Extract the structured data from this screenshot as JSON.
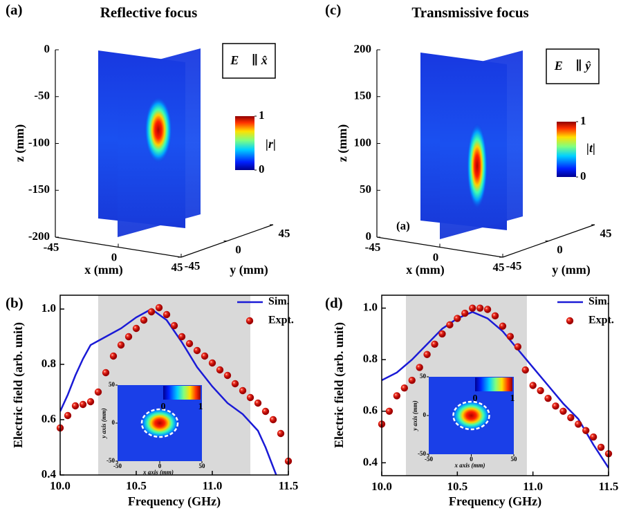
{
  "chart_data": [
    {
      "type": "field3d",
      "panel_label": "(a)",
      "title": "Reflective focus",
      "polarization": "E⃗ ∥ x̂",
      "zlabel": "z (mm)",
      "xlabel": "x (mm)",
      "ylabel": "y (mm)",
      "zlim": [
        -200,
        0
      ],
      "zticks": [
        0,
        -50,
        -100,
        -150,
        -200
      ],
      "xlim": [
        -45,
        45
      ],
      "xticks": [
        -45,
        0,
        45
      ],
      "ylim": [
        -45,
        45
      ],
      "yticks": [
        -45,
        0,
        45
      ],
      "colorbar": {
        "label": "|r|",
        "lim": [
          0,
          1
        ],
        "ticks": [
          1,
          0
        ]
      }
    },
    {
      "type": "line",
      "panel_label": "(b)",
      "xlabel": "Frequency (GHz)",
      "ylabel": "Electric field (arb. unit)",
      "xlim": [
        10,
        11.5
      ],
      "xticks": [
        {
          "value": 10,
          "label": "10.0"
        },
        10.5,
        {
          "value": 11,
          "label": "11.0"
        },
        11.5
      ],
      "ylim": [
        0.4,
        1.05
      ],
      "yticks": [
        0.4,
        0.6,
        0.8,
        {
          "value": 1,
          "label": "1.0"
        }
      ],
      "shade": [
        10.25,
        11.25
      ],
      "legend": "upper right",
      "series": [
        {
          "name": "Sim.",
          "color": "#1a1ad6",
          "style": "line",
          "x": [
            10.0,
            10.05,
            10.1,
            10.15,
            10.2,
            10.25,
            10.3,
            10.4,
            10.5,
            10.6,
            10.7,
            10.8,
            10.9,
            11.0,
            11.1,
            11.2,
            11.3,
            11.35,
            11.42
          ],
          "values": [
            0.63,
            0.69,
            0.76,
            0.82,
            0.87,
            0.885,
            0.9,
            0.93,
            0.97,
            1.0,
            0.96,
            0.88,
            0.79,
            0.72,
            0.66,
            0.62,
            0.56,
            0.5,
            0.4
          ]
        },
        {
          "name": "Expt.",
          "color": "#e8261c",
          "style": "marker",
          "x": [
            10.0,
            10.05,
            10.1,
            10.15,
            10.2,
            10.25,
            10.3,
            10.35,
            10.4,
            10.45,
            10.5,
            10.55,
            10.6,
            10.65,
            10.7,
            10.75,
            10.8,
            10.85,
            10.9,
            10.95,
            11.0,
            11.05,
            11.1,
            11.15,
            11.2,
            11.25,
            11.3,
            11.35,
            11.4,
            11.45,
            11.5
          ],
          "values": [
            0.57,
            0.615,
            0.65,
            0.655,
            0.665,
            0.7,
            0.77,
            0.83,
            0.87,
            0.9,
            0.93,
            0.96,
            0.99,
            1.005,
            0.98,
            0.94,
            0.9,
            0.875,
            0.85,
            0.83,
            0.805,
            0.78,
            0.76,
            0.73,
            0.705,
            0.68,
            0.66,
            0.63,
            0.6,
            0.55,
            0.45
          ]
        }
      ],
      "inset": {
        "xlabel": "x axis (mm)",
        "ylabel": "y axis (mm)",
        "xlim": [
          -50,
          50
        ],
        "ylim": [
          -50,
          50
        ],
        "xticks": [
          -50,
          0,
          50
        ],
        "yticks": [
          -50,
          0,
          50
        ],
        "colorbar_ticks": [
          0,
          1
        ]
      }
    },
    {
      "type": "field3d",
      "panel_label": "(c)",
      "title": "Transmissive focus",
      "polarization": "E⃗ ∥ ŷ",
      "zlabel": "z (mm)",
      "xlabel": "x (mm)",
      "ylabel": "y (mm)",
      "annotation": "(a)",
      "zlim": [
        0,
        200
      ],
      "zticks": [
        200,
        150,
        100,
        50,
        0
      ],
      "xlim": [
        -45,
        45
      ],
      "xticks": [
        -45,
        0,
        45
      ],
      "ylim": [
        -45,
        45
      ],
      "yticks": [
        -45,
        0,
        45
      ],
      "colorbar": {
        "label": "|t|",
        "lim": [
          0,
          1
        ],
        "ticks": [
          1,
          0
        ]
      }
    },
    {
      "type": "line",
      "panel_label": "(d)",
      "xlabel": "Frequency (GHz)",
      "ylabel": "Electric field (arb. unit)",
      "xlim": [
        10,
        11.5
      ],
      "xticks": [
        {
          "value": 10,
          "label": "10.0"
        },
        10.5,
        {
          "value": 11,
          "label": "11.0"
        },
        11.5
      ],
      "ylim": [
        0.35,
        1.05
      ],
      "yticks": [
        0.4,
        0.6,
        0.8,
        {
          "value": 1,
          "label": "1.0"
        }
      ],
      "shade": [
        10.16,
        10.96
      ],
      "legend": "upper right",
      "series": [
        {
          "name": "Sim.",
          "color": "#1a1ad6",
          "style": "line",
          "x": [
            10.0,
            10.1,
            10.2,
            10.3,
            10.4,
            10.5,
            10.6,
            10.7,
            10.8,
            10.9,
            11.0,
            11.1,
            11.2,
            11.3,
            11.4,
            11.5
          ],
          "values": [
            0.72,
            0.75,
            0.8,
            0.86,
            0.92,
            0.96,
            0.985,
            0.96,
            0.91,
            0.84,
            0.77,
            0.7,
            0.63,
            0.57,
            0.47,
            0.38
          ]
        },
        {
          "name": "Expt.",
          "color": "#e8261c",
          "style": "marker",
          "x": [
            10.0,
            10.05,
            10.1,
            10.15,
            10.2,
            10.25,
            10.3,
            10.35,
            10.4,
            10.45,
            10.5,
            10.55,
            10.6,
            10.65,
            10.7,
            10.75,
            10.8,
            10.85,
            10.9,
            10.95,
            11.0,
            11.05,
            11.1,
            11.15,
            11.2,
            11.25,
            11.3,
            11.35,
            11.4,
            11.45,
            11.5
          ],
          "values": [
            0.55,
            0.6,
            0.66,
            0.69,
            0.72,
            0.77,
            0.82,
            0.86,
            0.9,
            0.935,
            0.96,
            0.98,
            1.0,
            1.0,
            0.995,
            0.97,
            0.93,
            0.89,
            0.85,
            0.76,
            0.7,
            0.68,
            0.65,
            0.62,
            0.6,
            0.575,
            0.55,
            0.525,
            0.5,
            0.46,
            0.435
          ]
        }
      ],
      "inset": {
        "xlabel": "x axis (mm)",
        "ylabel": "y axis (mm)",
        "xlim": [
          -50,
          50
        ],
        "ylim": [
          -50,
          50
        ],
        "xticks": [
          -50,
          0,
          50
        ],
        "yticks": [
          -50,
          0,
          50
        ],
        "colorbar_ticks": [
          0,
          1
        ]
      }
    }
  ]
}
